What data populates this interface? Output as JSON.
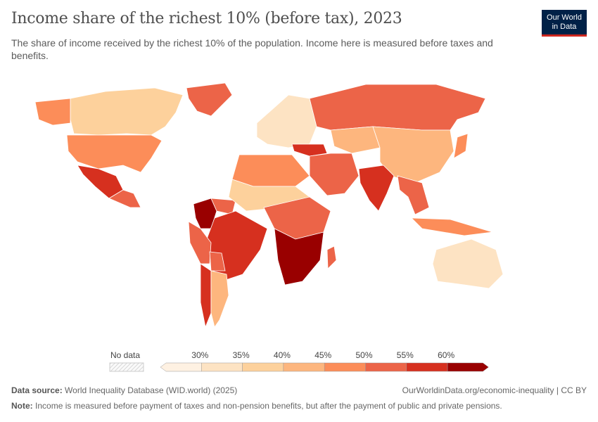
{
  "header": {
    "title": "Income share of the richest 10% (before tax), 2023",
    "subtitle": "The share of income received by the richest 10% of the population. Income here is measured before taxes and benefits.",
    "logo_line1": "Our World",
    "logo_line2": "in Data"
  },
  "chart_data": {
    "type": "map",
    "title": "Income share of the richest 10% (before tax), 2023",
    "legend": {
      "no_data_label": "No data",
      "ticks": [
        "30%",
        "35%",
        "40%",
        "45%",
        "50%",
        "55%",
        "60%"
      ],
      "bins": [
        {
          "range": "<30%",
          "color": "#fef1e2"
        },
        {
          "range": "30-35%",
          "color": "#fde3c3"
        },
        {
          "range": "35-40%",
          "color": "#fdd19c"
        },
        {
          "range": "40-45%",
          "color": "#fdb67e"
        },
        {
          "range": "45-50%",
          "color": "#fc8d59"
        },
        {
          "range": "50-55%",
          "color": "#ec6448"
        },
        {
          "range": "55-60%",
          "color": "#d6301f"
        },
        {
          "range": ">60%",
          "color": "#990000"
        }
      ]
    },
    "regions": [
      {
        "name": "Canada",
        "bin": 2
      },
      {
        "name": "Greenland",
        "bin": 5
      },
      {
        "name": "Alaska",
        "bin": 4
      },
      {
        "name": "United States",
        "bin": 4
      },
      {
        "name": "Mexico",
        "bin": 6
      },
      {
        "name": "Central America",
        "bin": 5
      },
      {
        "name": "Colombia",
        "bin": 7
      },
      {
        "name": "Venezuela",
        "bin": 5
      },
      {
        "name": "Brazil",
        "bin": 6
      },
      {
        "name": "Peru",
        "bin": 5
      },
      {
        "name": "Bolivia",
        "bin": 5
      },
      {
        "name": "Chile",
        "bin": 6
      },
      {
        "name": "Argentina",
        "bin": 3
      },
      {
        "name": "Europe",
        "bin": 1
      },
      {
        "name": "Russia",
        "bin": 5
      },
      {
        "name": "Central Asia",
        "bin": 3
      },
      {
        "name": "China",
        "bin": 3
      },
      {
        "name": "Turkey & Syria",
        "bin": 6
      },
      {
        "name": "Middle East",
        "bin": 5
      },
      {
        "name": "India",
        "bin": 6
      },
      {
        "name": "Southeast Asia",
        "bin": 5
      },
      {
        "name": "Japan",
        "bin": 4
      },
      {
        "name": "Indonesia",
        "bin": 4
      },
      {
        "name": "Australia",
        "bin": 1
      },
      {
        "name": "North Africa",
        "bin": 4
      },
      {
        "name": "Sahel",
        "bin": 2
      },
      {
        "name": "Central Africa",
        "bin": 5
      },
      {
        "name": "Southern Africa",
        "bin": 7
      },
      {
        "name": "Madagascar",
        "bin": 5
      }
    ]
  },
  "footer": {
    "source_label": "Data source:",
    "source": "World Inequality Database (WID.world) (2025)",
    "url": "OurWorldinData.org/economic-inequality | CC BY",
    "note_label": "Note:",
    "note": "Income is measured before payment of taxes and non-pension benefits, but after the payment of public and private pensions."
  }
}
